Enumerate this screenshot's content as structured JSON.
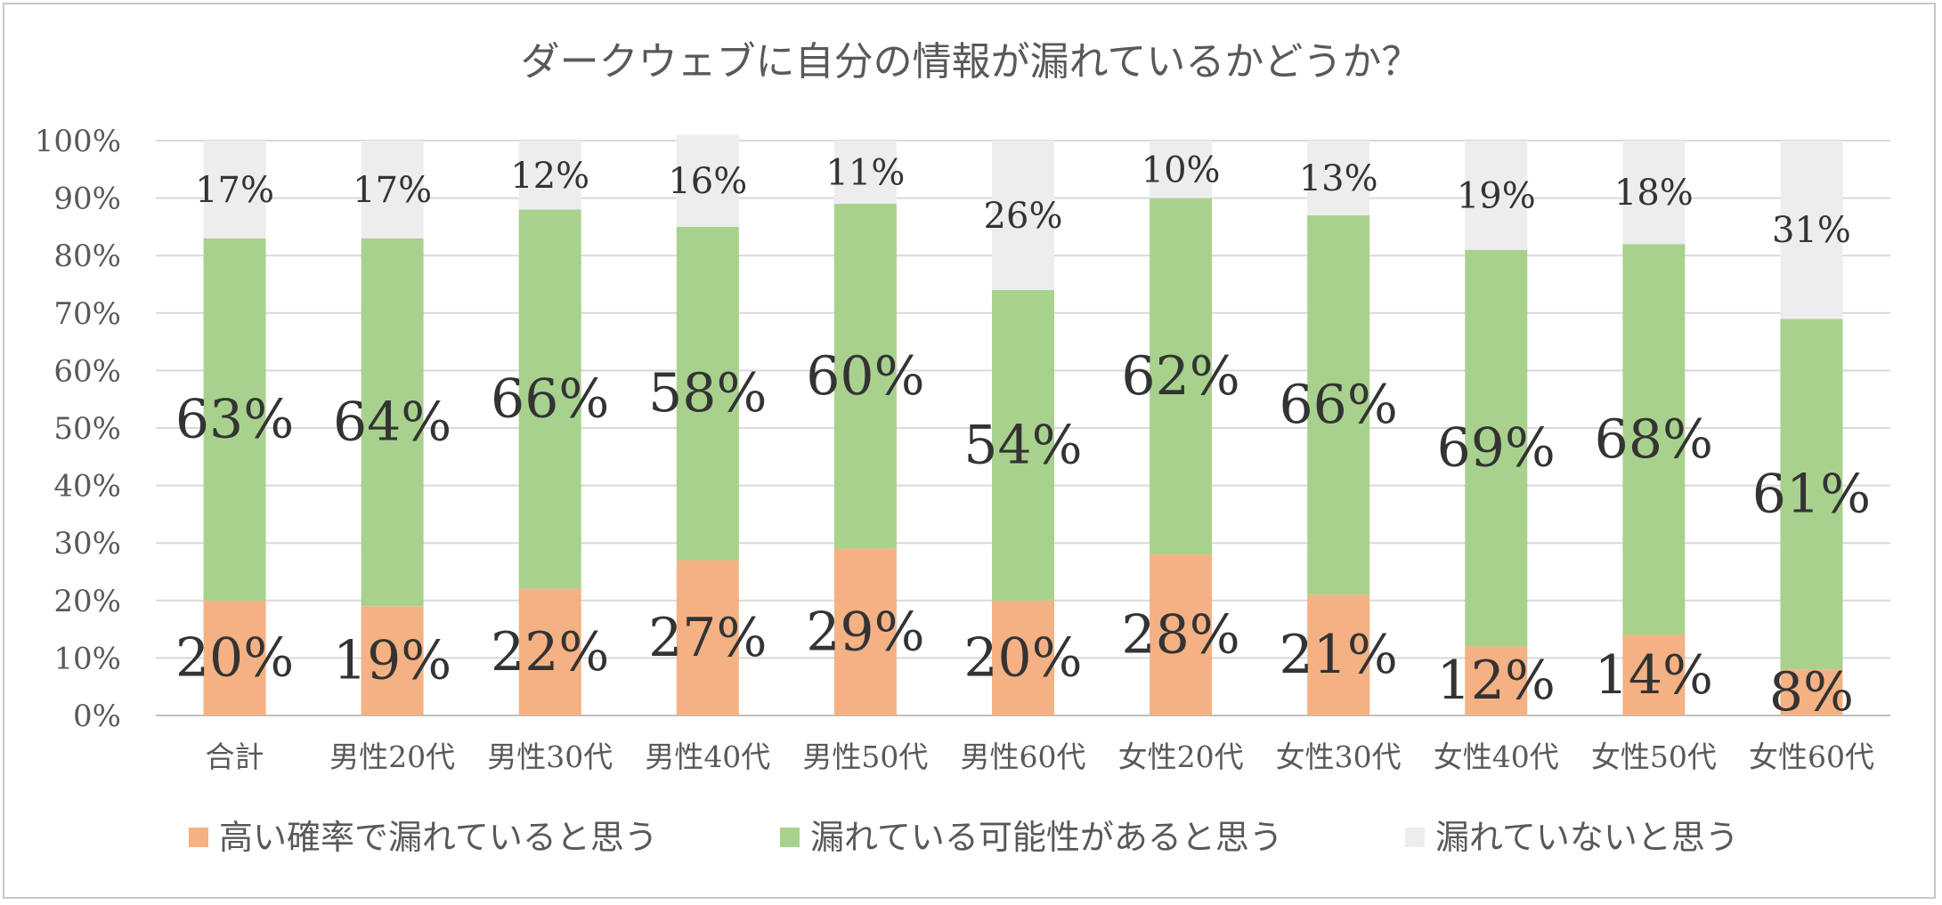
{
  "chart_data": {
    "type": "bar",
    "stacked": true,
    "title": "ダークウェブに自分の情報が漏れているかどうか？",
    "categories": [
      "合計",
      "男性20代",
      "男性30代",
      "男性40代",
      "男性50代",
      "男性60代",
      "女性20代",
      "女性30代",
      "女性40代",
      "女性50代",
      "女性60代"
    ],
    "series": [
      {
        "name": "高い確率で漏れていると思う",
        "color": "#f4b183",
        "values": [
          20,
          19,
          22,
          27,
          29,
          20,
          28,
          21,
          12,
          14,
          8
        ]
      },
      {
        "name": "漏れている可能性があると思う",
        "color": "#a9d18e",
        "values": [
          63,
          64,
          66,
          58,
          60,
          54,
          62,
          66,
          69,
          68,
          61
        ]
      },
      {
        "name": "漏れていないと思う",
        "color": "#ededed",
        "values": [
          17,
          17,
          12,
          16,
          11,
          26,
          10,
          13,
          19,
          18,
          31
        ]
      }
    ],
    "ylim": [
      0,
      100
    ],
    "yticks": [
      "0%",
      "10%",
      "20%",
      "30%",
      "40%",
      "50%",
      "60%",
      "70%",
      "80%",
      "90%",
      "100%"
    ],
    "grid": true,
    "legend": "bottom"
  }
}
